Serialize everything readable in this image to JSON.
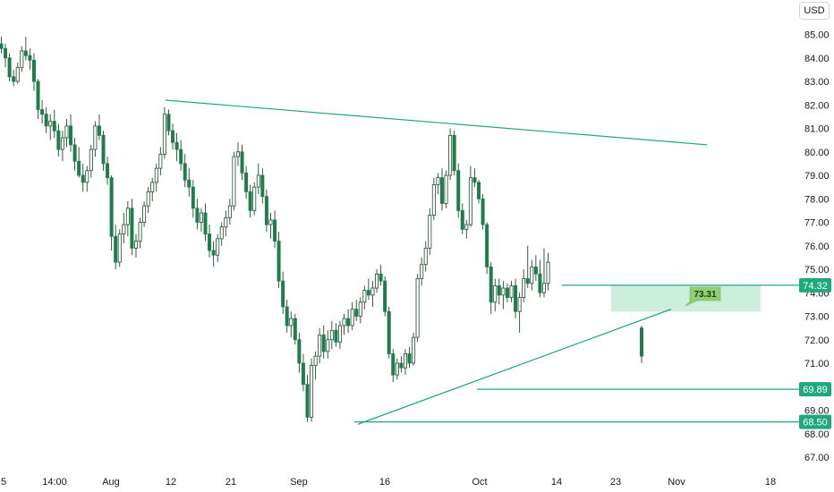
{
  "currency": "USD",
  "colors": {
    "up": "#089981",
    "down": "#f23645",
    "line": "#1ea97c",
    "candle_fill": "#ffffff",
    "candle_down_fill": "#1e7d4b",
    "zone": "#c8ebd9",
    "badge": "#8fce74"
  },
  "chart_data": {
    "type": "candlestick",
    "ylim": [
      66.5,
      86.2
    ],
    "y_ticks": [
      "85.00",
      "84.00",
      "83.00",
      "82.00",
      "81.00",
      "80.00",
      "79.00",
      "78.00",
      "77.00",
      "76.00",
      "75.00",
      "74.00",
      "73.00",
      "72.00",
      "71.00",
      "70.00",
      "69.00",
      "68.00",
      "67.00"
    ],
    "x_ticks": [
      "5",
      "14:00",
      "Aug",
      "12",
      "21",
      "Sep",
      "16",
      "Oct",
      "14",
      "23",
      "Nov",
      "18"
    ],
    "price_labels": [
      "74.32",
      "69.89",
      "68.50"
    ],
    "annotation": "73.31",
    "candles": [
      [
        84.6,
        84.9,
        84.2,
        84.4
      ],
      [
        84.4,
        84.6,
        83.6,
        84.0
      ],
      [
        84.0,
        84.2,
        83.0,
        83.2
      ],
      [
        83.2,
        83.5,
        82.8,
        83.0
      ],
      [
        83.0,
        83.8,
        82.9,
        83.6
      ],
      [
        83.6,
        84.5,
        83.4,
        84.3
      ],
      [
        84.3,
        84.9,
        83.9,
        84.1
      ],
      [
        84.1,
        84.4,
        83.5,
        83.9
      ],
      [
        83.9,
        84.2,
        82.6,
        83.0
      ],
      [
        83.0,
        83.1,
        81.4,
        81.8
      ],
      [
        81.8,
        82.2,
        81.2,
        81.6
      ],
      [
        81.6,
        81.9,
        80.8,
        81.1
      ],
      [
        81.1,
        81.6,
        80.5,
        81.3
      ],
      [
        81.3,
        81.8,
        80.6,
        80.9
      ],
      [
        80.9,
        81.2,
        79.8,
        80.1
      ],
      [
        80.1,
        80.9,
        79.6,
        80.6
      ],
      [
        80.6,
        81.4,
        80.2,
        81.1
      ],
      [
        81.1,
        81.6,
        80.0,
        80.3
      ],
      [
        80.3,
        80.6,
        79.2,
        79.6
      ],
      [
        79.6,
        80.2,
        78.9,
        79.0
      ],
      [
        79.0,
        79.5,
        78.3,
        78.7
      ],
      [
        78.7,
        79.4,
        78.3,
        79.2
      ],
      [
        79.2,
        80.3,
        78.9,
        80.1
      ],
      [
        80.1,
        81.3,
        79.8,
        81.1
      ],
      [
        81.1,
        81.6,
        80.5,
        80.7
      ],
      [
        80.7,
        80.9,
        79.2,
        79.5
      ],
      [
        79.5,
        79.8,
        78.6,
        78.9
      ],
      [
        78.9,
        79.0,
        75.8,
        76.4
      ],
      [
        76.4,
        76.9,
        75.0,
        75.3
      ],
      [
        75.3,
        76.7,
        75.1,
        76.5
      ],
      [
        76.5,
        77.4,
        76.1,
        76.9
      ],
      [
        76.9,
        77.9,
        76.4,
        77.6
      ],
      [
        77.6,
        78.0,
        75.6,
        75.9
      ],
      [
        75.9,
        76.5,
        75.5,
        76.2
      ],
      [
        76.2,
        77.2,
        75.9,
        77.0
      ],
      [
        77.0,
        77.9,
        76.8,
        77.7
      ],
      [
        77.7,
        78.5,
        77.4,
        78.3
      ],
      [
        78.3,
        78.9,
        77.9,
        78.7
      ],
      [
        78.7,
        79.5,
        78.3,
        79.3
      ],
      [
        79.3,
        80.2,
        79.0,
        79.9
      ],
      [
        79.9,
        81.9,
        79.7,
        81.6
      ],
      [
        81.6,
        81.8,
        80.7,
        80.9
      ],
      [
        80.9,
        81.2,
        80.1,
        80.4
      ],
      [
        80.4,
        80.8,
        79.6,
        80.1
      ],
      [
        80.1,
        80.5,
        79.2,
        79.5
      ],
      [
        79.5,
        79.9,
        78.5,
        78.8
      ],
      [
        78.8,
        79.3,
        78.1,
        78.5
      ],
      [
        78.5,
        78.8,
        77.2,
        77.6
      ],
      [
        77.6,
        78.0,
        76.7,
        77.0
      ],
      [
        77.0,
        77.6,
        76.6,
        77.4
      ],
      [
        77.4,
        77.8,
        76.2,
        76.5
      ],
      [
        76.5,
        76.9,
        75.5,
        75.8
      ],
      [
        75.8,
        76.2,
        75.1,
        75.6
      ],
      [
        75.6,
        76.5,
        75.3,
        76.3
      ],
      [
        76.3,
        77.0,
        76.0,
        76.8
      ],
      [
        76.8,
        77.5,
        76.4,
        77.2
      ],
      [
        77.2,
        78.0,
        76.9,
        77.7
      ],
      [
        77.7,
        80.0,
        77.5,
        79.8
      ],
      [
        79.8,
        80.4,
        79.4,
        80.0
      ],
      [
        80.0,
        80.3,
        78.8,
        79.1
      ],
      [
        79.1,
        79.4,
        78.0,
        78.3
      ],
      [
        78.3,
        78.6,
        77.2,
        77.5
      ],
      [
        77.5,
        78.7,
        77.3,
        78.5
      ],
      [
        78.5,
        79.5,
        78.2,
        79.0
      ],
      [
        79.0,
        79.3,
        77.8,
        78.1
      ],
      [
        78.1,
        78.4,
        76.6,
        76.9
      ],
      [
        76.9,
        77.4,
        76.3,
        77.1
      ],
      [
        77.1,
        77.5,
        75.9,
        76.2
      ],
      [
        76.2,
        76.6,
        74.2,
        74.5
      ],
      [
        74.5,
        74.9,
        73.1,
        73.4
      ],
      [
        73.4,
        73.7,
        72.3,
        72.6
      ],
      [
        72.6,
        73.2,
        72.1,
        72.9
      ],
      [
        72.9,
        73.1,
        71.8,
        72.0
      ],
      [
        72.0,
        72.3,
        70.6,
        71.0
      ],
      [
        71.0,
        71.4,
        69.8,
        70.1
      ],
      [
        70.1,
        70.5,
        68.5,
        68.7
      ],
      [
        68.7,
        71.2,
        68.5,
        70.9
      ],
      [
        70.9,
        71.5,
        70.3,
        71.3
      ],
      [
        71.3,
        72.5,
        71.0,
        72.2
      ],
      [
        72.2,
        72.6,
        71.2,
        71.5
      ],
      [
        71.5,
        72.4,
        71.2,
        72.0
      ],
      [
        72.0,
        72.8,
        71.6,
        72.4
      ],
      [
        72.4,
        72.7,
        71.7,
        71.9
      ],
      [
        71.9,
        72.8,
        71.6,
        72.6
      ],
      [
        72.6,
        73.1,
        72.2,
        72.9
      ],
      [
        72.9,
        73.3,
        72.3,
        72.6
      ],
      [
        72.6,
        73.6,
        72.4,
        73.3
      ],
      [
        73.3,
        73.7,
        72.8,
        73.0
      ],
      [
        73.0,
        73.8,
        72.7,
        73.6
      ],
      [
        73.6,
        74.3,
        73.3,
        74.1
      ],
      [
        74.1,
        74.6,
        73.7,
        73.9
      ],
      [
        73.9,
        74.5,
        73.4,
        74.2
      ],
      [
        74.2,
        75.0,
        74.0,
        74.8
      ],
      [
        74.8,
        75.2,
        74.3,
        74.5
      ],
      [
        74.5,
        74.7,
        73.0,
        73.2
      ],
      [
        73.2,
        73.4,
        71.2,
        71.4
      ],
      [
        71.4,
        71.6,
        70.2,
        70.5
      ],
      [
        70.5,
        71.2,
        70.3,
        71.0
      ],
      [
        71.0,
        71.3,
        70.6,
        70.8
      ],
      [
        70.8,
        71.6,
        70.5,
        71.4
      ],
      [
        71.4,
        71.7,
        70.8,
        71.0
      ],
      [
        71.0,
        72.3,
        70.9,
        72.1
      ],
      [
        72.1,
        74.8,
        71.9,
        74.6
      ],
      [
        74.6,
        75.5,
        74.3,
        75.2
      ],
      [
        75.2,
        76.2,
        74.9,
        75.9
      ],
      [
        75.9,
        77.6,
        75.6,
        77.3
      ],
      [
        77.3,
        78.9,
        77.1,
        78.6
      ],
      [
        78.6,
        79.1,
        78.2,
        78.9
      ],
      [
        78.9,
        79.3,
        77.5,
        77.8
      ],
      [
        77.8,
        79.2,
        77.6,
        79.0
      ],
      [
        79.0,
        81.0,
        78.8,
        80.7
      ],
      [
        80.7,
        80.9,
        79.0,
        79.2
      ],
      [
        79.2,
        79.5,
        77.2,
        77.5
      ],
      [
        77.5,
        77.8,
        76.5,
        76.7
      ],
      [
        76.7,
        77.1,
        76.3,
        76.9
      ],
      [
        76.9,
        79.4,
        76.8,
        78.9
      ],
      [
        78.9,
        79.3,
        78.5,
        78.7
      ],
      [
        78.7,
        78.8,
        77.8,
        78.0
      ],
      [
        78.0,
        78.2,
        76.7,
        76.9
      ],
      [
        76.9,
        77.0,
        74.8,
        75.1
      ],
      [
        75.1,
        75.3,
        73.1,
        73.6
      ],
      [
        73.6,
        74.6,
        73.2,
        74.3
      ],
      [
        74.3,
        74.6,
        73.5,
        73.9
      ],
      [
        73.9,
        74.5,
        73.3,
        74.2
      ],
      [
        74.2,
        74.4,
        73.6,
        73.8
      ],
      [
        73.8,
        74.5,
        73.6,
        74.3
      ],
      [
        74.3,
        74.6,
        72.9,
        73.2
      ],
      [
        73.2,
        74.0,
        72.3,
        73.8
      ],
      [
        73.8,
        75.0,
        73.6,
        74.6
      ],
      [
        74.6,
        76.0,
        74.2,
        74.4
      ],
      [
        74.4,
        75.4,
        74.1,
        75.1
      ],
      [
        75.1,
        75.6,
        74.5,
        74.8
      ],
      [
        74.8,
        75.4,
        73.8,
        74.0
      ],
      [
        74.0,
        75.9,
        73.8,
        74.4
      ],
      [
        74.4,
        75.7,
        74.1,
        75.3
      ],
      [
        72.5,
        72.6,
        71.0,
        71.3
      ]
    ],
    "trendlines": [
      {
        "from": [
          185,
          82.2
        ],
        "to": [
          790,
          80.3
        ]
      },
      {
        "from": [
          400,
          68.4
        ],
        "to": [
          750,
          73.3
        ]
      }
    ],
    "levels": [
      {
        "value": 74.32,
        "x_start": 628
      },
      {
        "value": 69.89,
        "x_start": 533
      },
      {
        "value": 68.5,
        "x_start": 396
      }
    ]
  }
}
